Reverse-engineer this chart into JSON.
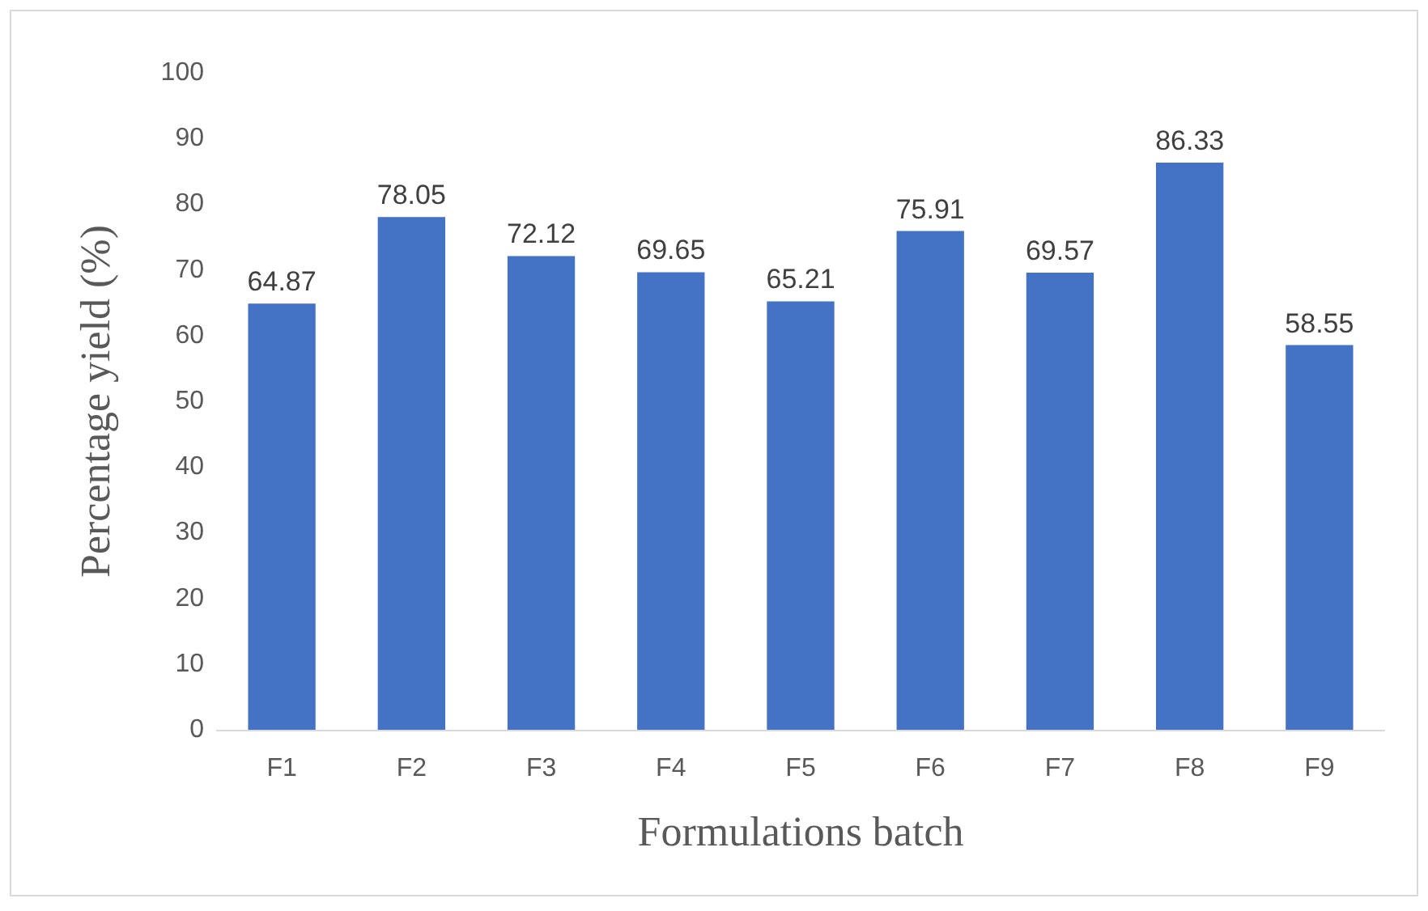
{
  "chart_data": {
    "type": "bar",
    "xlabel": "Formulations batch",
    "ylabel": "Percentage yield (%)",
    "categories": [
      "F1",
      "F2",
      "F3",
      "F4",
      "F5",
      "F6",
      "F7",
      "F8",
      "F9"
    ],
    "values": [
      64.87,
      78.05,
      72.12,
      69.65,
      65.21,
      75.91,
      69.57,
      86.33,
      58.55
    ],
    "color": "#4472c4",
    "ylim": [
      0,
      100
    ],
    "yticks": [
      0,
      10,
      20,
      30,
      40,
      50,
      60,
      70,
      80,
      90,
      100
    ],
    "grid": false,
    "data_labels": true
  }
}
